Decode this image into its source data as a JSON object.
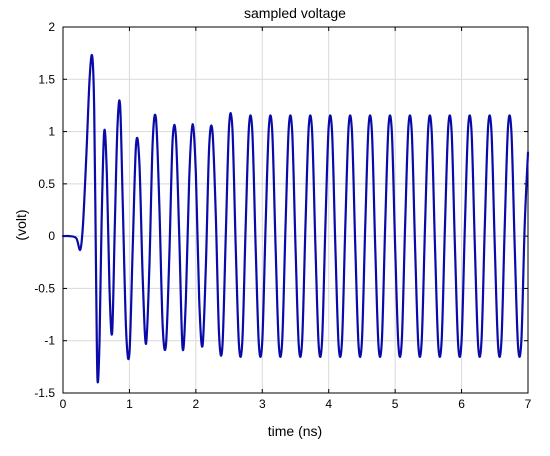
{
  "chart_data": {
    "type": "line",
    "title": "sampled voltage",
    "xlabel": "time (ns)",
    "ylabel": "(volt)",
    "xlim": [
      0,
      7
    ],
    "ylim": [
      -1.5,
      2
    ],
    "xticks": [
      0,
      1,
      2,
      3,
      4,
      5,
      6,
      7
    ],
    "yticks": [
      -1.5,
      -1,
      -0.5,
      0,
      0.5,
      1,
      1.5,
      2
    ],
    "xtick_labels": [
      "0",
      "1",
      "2",
      "3",
      "4",
      "5",
      "6",
      "7"
    ],
    "ytick_labels": [
      "-1.5",
      "-1",
      "-0.5",
      "0",
      "0.5",
      "1",
      "1.5",
      "2"
    ],
    "grid": true,
    "colors": {
      "line": "#0a0aa8",
      "grid": "#d9d9d9",
      "axes": "#000000"
    },
    "series": [
      {
        "x": [
          0,
          0.1,
          0.2,
          0.26,
          0.3,
          0.35,
          0.4,
          0.44,
          0.47,
          0.5,
          0.52,
          0.55,
          0.58,
          0.62,
          0.66,
          0.7,
          0.74,
          0.78,
          0.82,
          0.86,
          0.9,
          0.95,
          1.0,
          1.05,
          1.1,
          1.15,
          1.2,
          1.25,
          1.3,
          1.35,
          1.4,
          1.45,
          1.5,
          1.55,
          1.6,
          1.65,
          1.7,
          1.75,
          1.8,
          1.85,
          1.9,
          1.95,
          2.0,
          2.05,
          2.1,
          2.15,
          2.2,
          2.25,
          2.3,
          2.35,
          2.4,
          2.45,
          2.5,
          2.55,
          2.6,
          2.65,
          2.7,
          2.75,
          2.8,
          2.85,
          2.9,
          2.95,
          3.0,
          3.05,
          3.1,
          3.15,
          3.2,
          3.25,
          3.3,
          3.35,
          3.4,
          3.45,
          3.5,
          3.55,
          3.6,
          3.65,
          3.7,
          3.75,
          3.8,
          3.85,
          3.9,
          3.95,
          4.0,
          4.05,
          4.1,
          4.15,
          4.2,
          4.25,
          4.3,
          4.35,
          4.4,
          4.45,
          4.5,
          4.55,
          4.6,
          4.65,
          4.7,
          4.75,
          4.8,
          4.85,
          4.9,
          4.95,
          5.0,
          5.05,
          5.1,
          5.15,
          5.2,
          5.25,
          5.3,
          5.35,
          5.4,
          5.45,
          5.5,
          5.55,
          5.6,
          5.65,
          5.7,
          5.75,
          5.8,
          5.85,
          5.9,
          5.95,
          6.0,
          6.05,
          6.1,
          6.15,
          6.2,
          6.25,
          6.3,
          6.35,
          6.4,
          6.45,
          6.5,
          6.55,
          6.6,
          6.65,
          6.7,
          6.75,
          6.8,
          6.85,
          6.9,
          6.95,
          7.0
        ],
        "values": [
          0,
          0,
          -0.02,
          -0.13,
          0.1,
          0.75,
          1.5,
          1.72,
          1.2,
          -0.5,
          -1.38,
          -1.0,
          0.1,
          1.0,
          0.6,
          -0.5,
          -0.92,
          0.1,
          1.05,
          1.25,
          0.3,
          -0.9,
          -1.12,
          -0.1,
          0.88,
          0.7,
          -0.4,
          -1.03,
          -0.3,
          0.9,
          1.12,
          0.3,
          -0.85,
          -1.04,
          -0.2,
          0.92,
          0.95,
          0.0,
          -1.07,
          -0.6,
          0.55,
          1.07,
          0.6,
          -0.6,
          -1.05,
          -0.3,
          0.85,
          1.0,
          0.2,
          -0.95,
          -1.05,
          0.0,
          1.05,
          1.03,
          -0.1,
          -1.05,
          -1.0,
          0.1,
          1.05,
          1.0,
          -0.1,
          -1.05,
          -1.0,
          0.1,
          1.05,
          1.0,
          -0.1,
          -1.05,
          -1.0,
          0.1,
          1.05,
          1.0,
          -0.1,
          -1.05,
          -1.0,
          0.1,
          1.05,
          1.0,
          -0.1,
          -1.05,
          -1.0,
          0.1,
          1.05,
          1.0,
          -0.1,
          -1.05,
          -1.0,
          0.1,
          1.05,
          1.0,
          -0.1,
          -1.05,
          -1.0,
          0.1,
          1.05,
          1.0,
          -0.1,
          -1.05,
          -1.0,
          0.1,
          1.05,
          1.0,
          -0.1,
          -1.05,
          -1.0,
          0.1,
          1.05,
          1.0,
          -0.1,
          -1.05,
          -1.0,
          0.1,
          1.05,
          1.0,
          -0.1,
          -1.05,
          -1.0,
          0.1,
          1.05,
          1.0,
          -0.1,
          -1.05,
          -1.0,
          0.1,
          1.05,
          1.0,
          -0.1,
          -1.05,
          -1.0,
          0.1,
          1.05,
          1.0,
          -0.1,
          -1.05,
          -1.0,
          0.1,
          1.05,
          1.0,
          -0.1,
          -1.05,
          -1.0,
          0.1,
          0.8
        ]
      }
    ]
  }
}
